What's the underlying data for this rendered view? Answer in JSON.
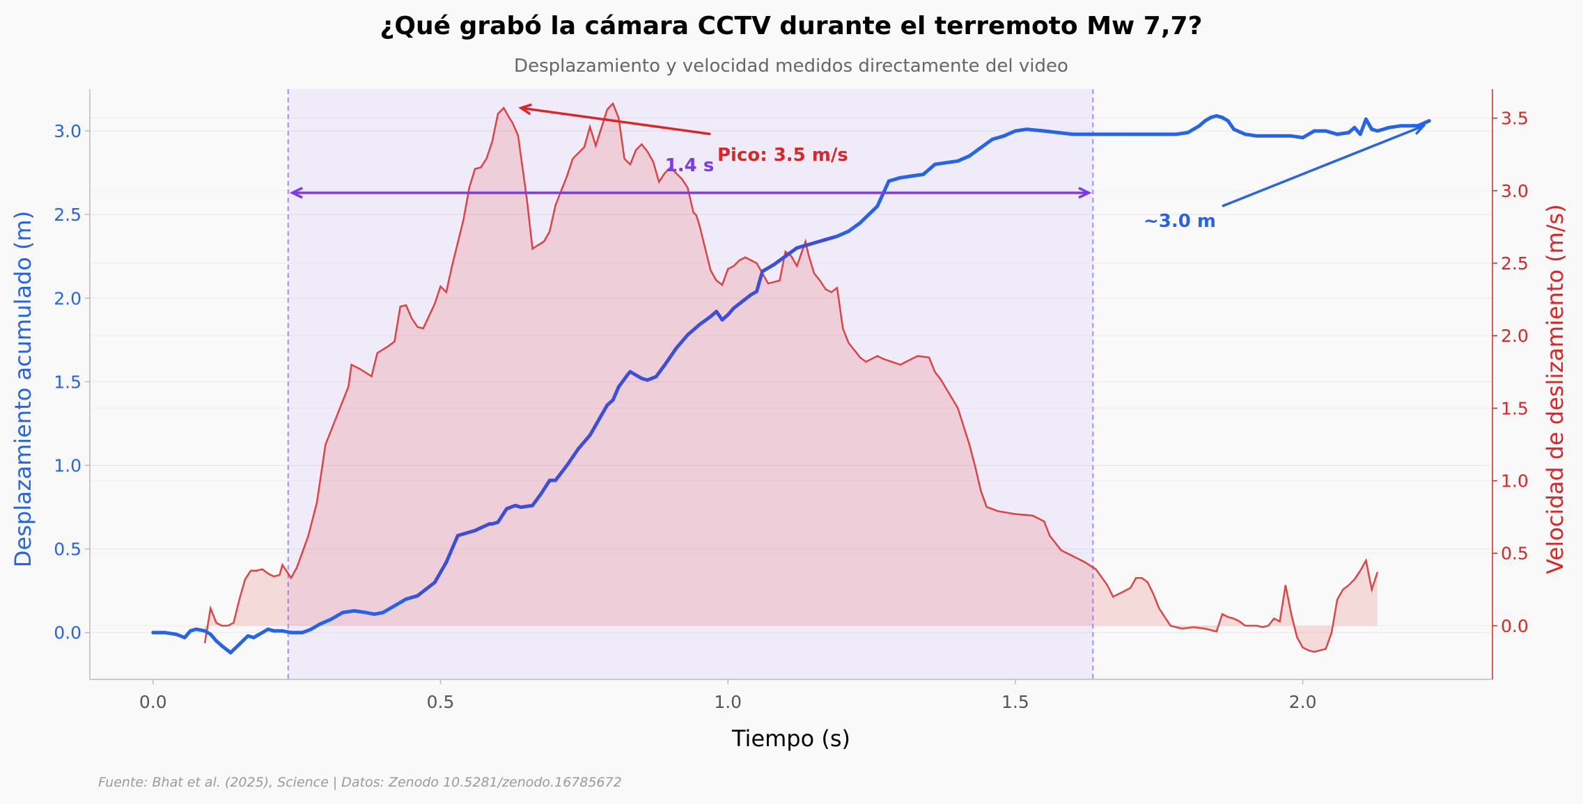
{
  "chart_data": {
    "type": "line",
    "title": "¿Qué grabó la cámara CCTV durante el terremoto Mw 7,7?",
    "subtitle": "Desplazamiento y velocidad medidos directamente del video",
    "xlabel": "Tiempo (s)",
    "ylabel_left": "Desplazamiento acumulado (m)",
    "ylabel_right": "Velocidad de deslizamiento (m/s)",
    "xlim": [
      -0.11,
      2.33
    ],
    "ylim_left": [
      -0.28,
      3.25
    ],
    "ylim_right": [
      -0.37,
      3.7
    ],
    "x_ticks": [
      "0.0",
      "0.5",
      "1.0",
      "1.5",
      "2.0"
    ],
    "y_left_ticks": [
      "0.0",
      "0.5",
      "1.0",
      "1.5",
      "2.0",
      "2.5",
      "3.0"
    ],
    "y_right_ticks": [
      "0.0",
      "0.5",
      "1.0",
      "1.5",
      "2.0",
      "2.5",
      "3.0",
      "3.5"
    ],
    "grid": true,
    "shaded_interval": [
      0.235,
      1.635
    ],
    "colors": {
      "displacement": "#2563eb",
      "velocity": "#dc2626",
      "duration": "#7c3aed",
      "footnote": "#999999"
    },
    "annotations": {
      "duration_label": "1.4 s",
      "peak_label": "Pico: 3.5 m/s",
      "total_label": "~3.0 m"
    },
    "footnote": "Fuente: Bhat et al. (2025), Science | Datos: Zenodo 10.5281/zenodo.16785672",
    "series": [
      {
        "axis": "left",
        "x": [
          0.0,
          0.02,
          0.04,
          0.055,
          0.065,
          0.075,
          0.09,
          0.1,
          0.11,
          0.12,
          0.135,
          0.15,
          0.165,
          0.175,
          0.185,
          0.2,
          0.21,
          0.225,
          0.24,
          0.25,
          0.26,
          0.275,
          0.29,
          0.31,
          0.32,
          0.33,
          0.35,
          0.37,
          0.385,
          0.4,
          0.42,
          0.44,
          0.45,
          0.46,
          0.49,
          0.51,
          0.53,
          0.56,
          0.585,
          0.59,
          0.6,
          0.615,
          0.63,
          0.64,
          0.66,
          0.675,
          0.69,
          0.7,
          0.72,
          0.74,
          0.76,
          0.775,
          0.78,
          0.79,
          0.8,
          0.81,
          0.825,
          0.83,
          0.85,
          0.86,
          0.875,
          0.89,
          0.91,
          0.93,
          0.95,
          0.97,
          0.98,
          0.99,
          1.0,
          1.01,
          1.025,
          1.04,
          1.05,
          1.06,
          1.08,
          1.1,
          1.12,
          1.15,
          1.17,
          1.18,
          1.19,
          1.21,
          1.23,
          1.26,
          1.28,
          1.3,
          1.32,
          1.34,
          1.36,
          1.38,
          1.4,
          1.42,
          1.44,
          1.46,
          1.48,
          1.5,
          1.52,
          1.55,
          1.6,
          1.65,
          1.7,
          1.75,
          1.78,
          1.8,
          1.82,
          1.83,
          1.84,
          1.85,
          1.86,
          1.87,
          1.88,
          1.9,
          1.92,
          1.95,
          1.98,
          2.0,
          2.02,
          2.04,
          2.05,
          2.06,
          2.08,
          2.09,
          2.1,
          2.11,
          2.12,
          2.13,
          2.15,
          2.17,
          2.2,
          2.22
        ],
        "y": [
          0.0,
          0.0,
          -0.01,
          -0.03,
          0.01,
          0.02,
          0.01,
          -0.01,
          -0.05,
          -0.08,
          -0.12,
          -0.07,
          -0.02,
          -0.03,
          -0.01,
          0.02,
          0.01,
          0.01,
          0.0,
          0.0,
          0.0,
          0.02,
          0.05,
          0.08,
          0.1,
          0.12,
          0.13,
          0.12,
          0.11,
          0.12,
          0.16,
          0.2,
          0.21,
          0.22,
          0.3,
          0.42,
          0.58,
          0.61,
          0.65,
          0.65,
          0.66,
          0.74,
          0.76,
          0.75,
          0.76,
          0.83,
          0.91,
          0.91,
          1.0,
          1.1,
          1.18,
          1.27,
          1.3,
          1.36,
          1.39,
          1.47,
          1.54,
          1.56,
          1.52,
          1.51,
          1.53,
          1.6,
          1.7,
          1.78,
          1.84,
          1.89,
          1.92,
          1.87,
          1.9,
          1.94,
          1.98,
          2.02,
          2.04,
          2.16,
          2.2,
          2.25,
          2.3,
          2.33,
          2.35,
          2.36,
          2.37,
          2.4,
          2.45,
          2.55,
          2.7,
          2.72,
          2.73,
          2.74,
          2.8,
          2.81,
          2.82,
          2.85,
          2.9,
          2.95,
          2.97,
          3.0,
          3.01,
          3.0,
          2.98,
          2.98,
          2.98,
          2.98,
          2.98,
          2.99,
          3.03,
          3.06,
          3.08,
          3.09,
          3.08,
          3.06,
          3.01,
          2.98,
          2.97,
          2.97,
          2.97,
          2.96,
          3.0,
          3.0,
          2.99,
          2.98,
          2.99,
          3.02,
          2.98,
          3.07,
          3.01,
          3.0,
          3.02,
          3.03,
          3.03,
          3.06
        ],
        "color": "#2563eb"
      },
      {
        "axis": "right",
        "x": [
          0.09,
          0.1,
          0.11,
          0.12,
          0.13,
          0.14,
          0.15,
          0.16,
          0.17,
          0.18,
          0.19,
          0.2,
          0.21,
          0.22,
          0.225,
          0.24,
          0.25,
          0.27,
          0.285,
          0.3,
          0.31,
          0.34,
          0.345,
          0.36,
          0.38,
          0.39,
          0.41,
          0.42,
          0.43,
          0.44,
          0.45,
          0.46,
          0.47,
          0.49,
          0.5,
          0.51,
          0.52,
          0.54,
          0.55,
          0.56,
          0.57,
          0.58,
          0.59,
          0.6,
          0.61,
          0.62,
          0.625,
          0.635,
          0.65,
          0.66,
          0.68,
          0.69,
          0.7,
          0.72,
          0.73,
          0.75,
          0.76,
          0.77,
          0.79,
          0.8,
          0.81,
          0.82,
          0.83,
          0.84,
          0.85,
          0.86,
          0.87,
          0.88,
          0.89,
          0.9,
          0.92,
          0.93,
          0.94,
          0.945,
          0.95,
          0.97,
          0.98,
          0.99,
          1.0,
          1.01,
          1.02,
          1.03,
          1.05,
          1.07,
          1.09,
          1.1,
          1.11,
          1.12,
          1.135,
          1.14,
          1.15,
          1.16,
          1.17,
          1.18,
          1.19,
          1.2,
          1.21,
          1.22,
          1.23,
          1.24,
          1.26,
          1.27,
          1.3,
          1.32,
          1.33,
          1.35,
          1.36,
          1.37,
          1.4,
          1.42,
          1.43,
          1.44,
          1.45,
          1.47,
          1.5,
          1.53,
          1.55,
          1.56,
          1.58,
          1.6,
          1.62,
          1.64,
          1.66,
          1.67,
          1.68,
          1.7,
          1.71,
          1.72,
          1.73,
          1.74,
          1.75,
          1.76,
          1.77,
          1.79,
          1.81,
          1.83,
          1.85,
          1.86,
          1.87,
          1.88,
          1.89,
          1.9,
          1.92,
          1.93,
          1.94,
          1.95,
          1.96,
          1.97,
          1.98,
          1.99,
          2.0,
          2.01,
          2.02,
          2.03,
          2.04,
          2.05,
          2.06,
          2.07,
          2.08,
          2.09,
          2.1,
          2.11,
          2.12,
          2.13
        ],
        "y": [
          -0.12,
          0.12,
          0.02,
          0.0,
          0.0,
          0.02,
          0.18,
          0.32,
          0.38,
          0.38,
          0.39,
          0.36,
          0.34,
          0.35,
          0.42,
          0.33,
          0.4,
          0.62,
          0.85,
          1.25,
          1.35,
          1.65,
          1.8,
          1.77,
          1.72,
          1.88,
          1.93,
          1.96,
          2.2,
          2.21,
          2.12,
          2.06,
          2.05,
          2.22,
          2.34,
          2.3,
          2.48,
          2.8,
          3.02,
          3.15,
          3.16,
          3.22,
          3.34,
          3.53,
          3.57,
          3.5,
          3.47,
          3.38,
          2.95,
          2.6,
          2.65,
          2.72,
          2.9,
          3.1,
          3.22,
          3.3,
          3.44,
          3.31,
          3.56,
          3.6,
          3.5,
          3.22,
          3.18,
          3.28,
          3.32,
          3.27,
          3.2,
          3.06,
          3.12,
          3.16,
          3.08,
          3.02,
          2.85,
          2.83,
          2.77,
          2.45,
          2.38,
          2.35,
          2.46,
          2.48,
          2.52,
          2.54,
          2.5,
          2.36,
          2.38,
          2.58,
          2.55,
          2.48,
          2.65,
          2.56,
          2.43,
          2.38,
          2.32,
          2.3,
          2.33,
          2.05,
          1.95,
          1.9,
          1.85,
          1.82,
          1.86,
          1.84,
          1.8,
          1.84,
          1.86,
          1.85,
          1.75,
          1.7,
          1.5,
          1.25,
          1.1,
          0.93,
          0.82,
          0.79,
          0.77,
          0.76,
          0.72,
          0.62,
          0.52,
          0.48,
          0.44,
          0.39,
          0.28,
          0.2,
          0.22,
          0.26,
          0.33,
          0.33,
          0.3,
          0.22,
          0.12,
          0.06,
          0.0,
          -0.02,
          -0.01,
          -0.02,
          -0.04,
          0.08,
          0.06,
          0.05,
          0.03,
          0.0,
          0.0,
          -0.01,
          0.0,
          0.05,
          0.03,
          0.28,
          0.08,
          -0.08,
          -0.15,
          -0.17,
          -0.18,
          -0.17,
          -0.16,
          -0.05,
          0.18,
          0.25,
          0.28,
          0.32,
          0.38,
          0.45,
          0.25,
          0.37
        ],
        "color": "#dc2626"
      }
    ]
  }
}
